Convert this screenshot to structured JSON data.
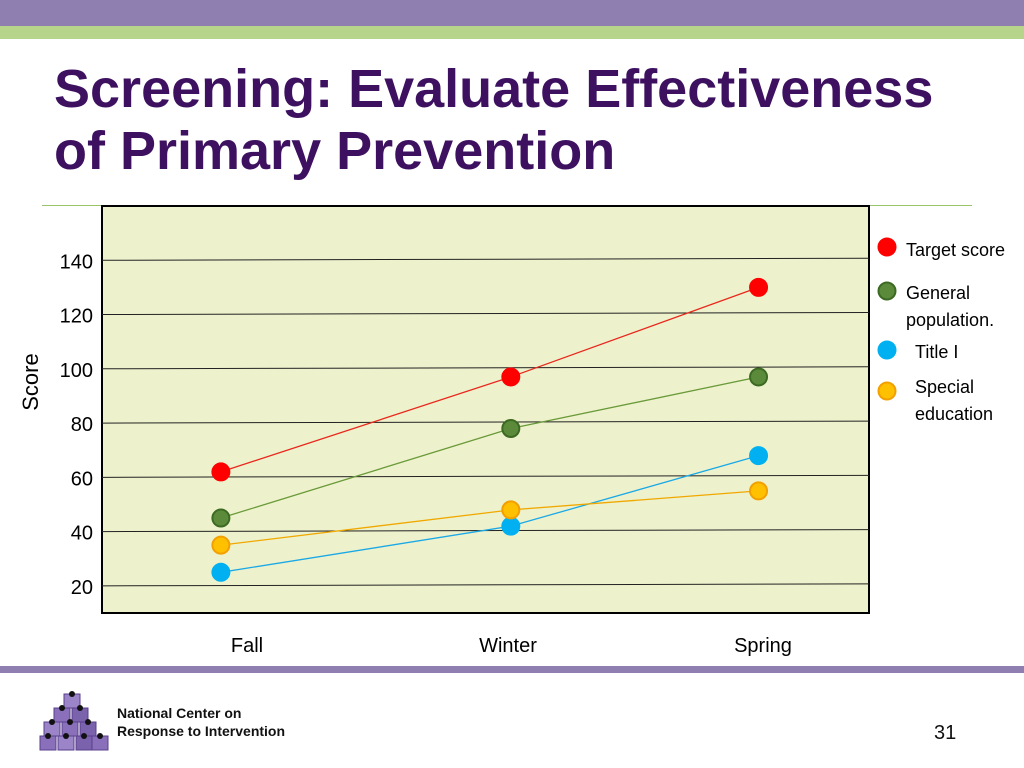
{
  "slide": {
    "title": "Screening: Evaluate Effectiveness of Primary Prevention",
    "org_line1": "National Center on",
    "org_line2": "Response to Intervention",
    "page_number": "31"
  },
  "colors": {
    "purple_bar": "#8e7fb0",
    "green_bar": "#b7d58a",
    "title": "#3d1060",
    "plot_bg": "#eef2cc"
  },
  "chart_data": {
    "type": "line",
    "title": "",
    "xlabel": "",
    "ylabel": "Score",
    "categories": [
      "Fall",
      "Winter",
      "Spring"
    ],
    "ylim": [
      10,
      160
    ],
    "yticks": [
      20,
      40,
      60,
      80,
      100,
      120,
      140
    ],
    "grid": true,
    "legend_position": "right",
    "series": [
      {
        "name": "Target score",
        "values": [
          62,
          97,
          130
        ],
        "color": "#ff0000",
        "line_color": "#e8281e",
        "marker_stroke": "#ff0000"
      },
      {
        "name": "General population.",
        "values": [
          45,
          78,
          97
        ],
        "color": "#5b8a3a",
        "line_color": "#6a9a3a",
        "marker_stroke": "#3d6a22"
      },
      {
        "name": "Title I",
        "values": [
          25,
          42,
          68
        ],
        "color": "#00b0f0",
        "line_color": "#1aa8e6",
        "marker_stroke": "#00b0f0"
      },
      {
        "name": "Special education",
        "values": [
          35,
          48,
          55
        ],
        "color": "#ffc000",
        "line_color": "#f0a800",
        "marker_stroke": "#f2a000"
      }
    ]
  }
}
